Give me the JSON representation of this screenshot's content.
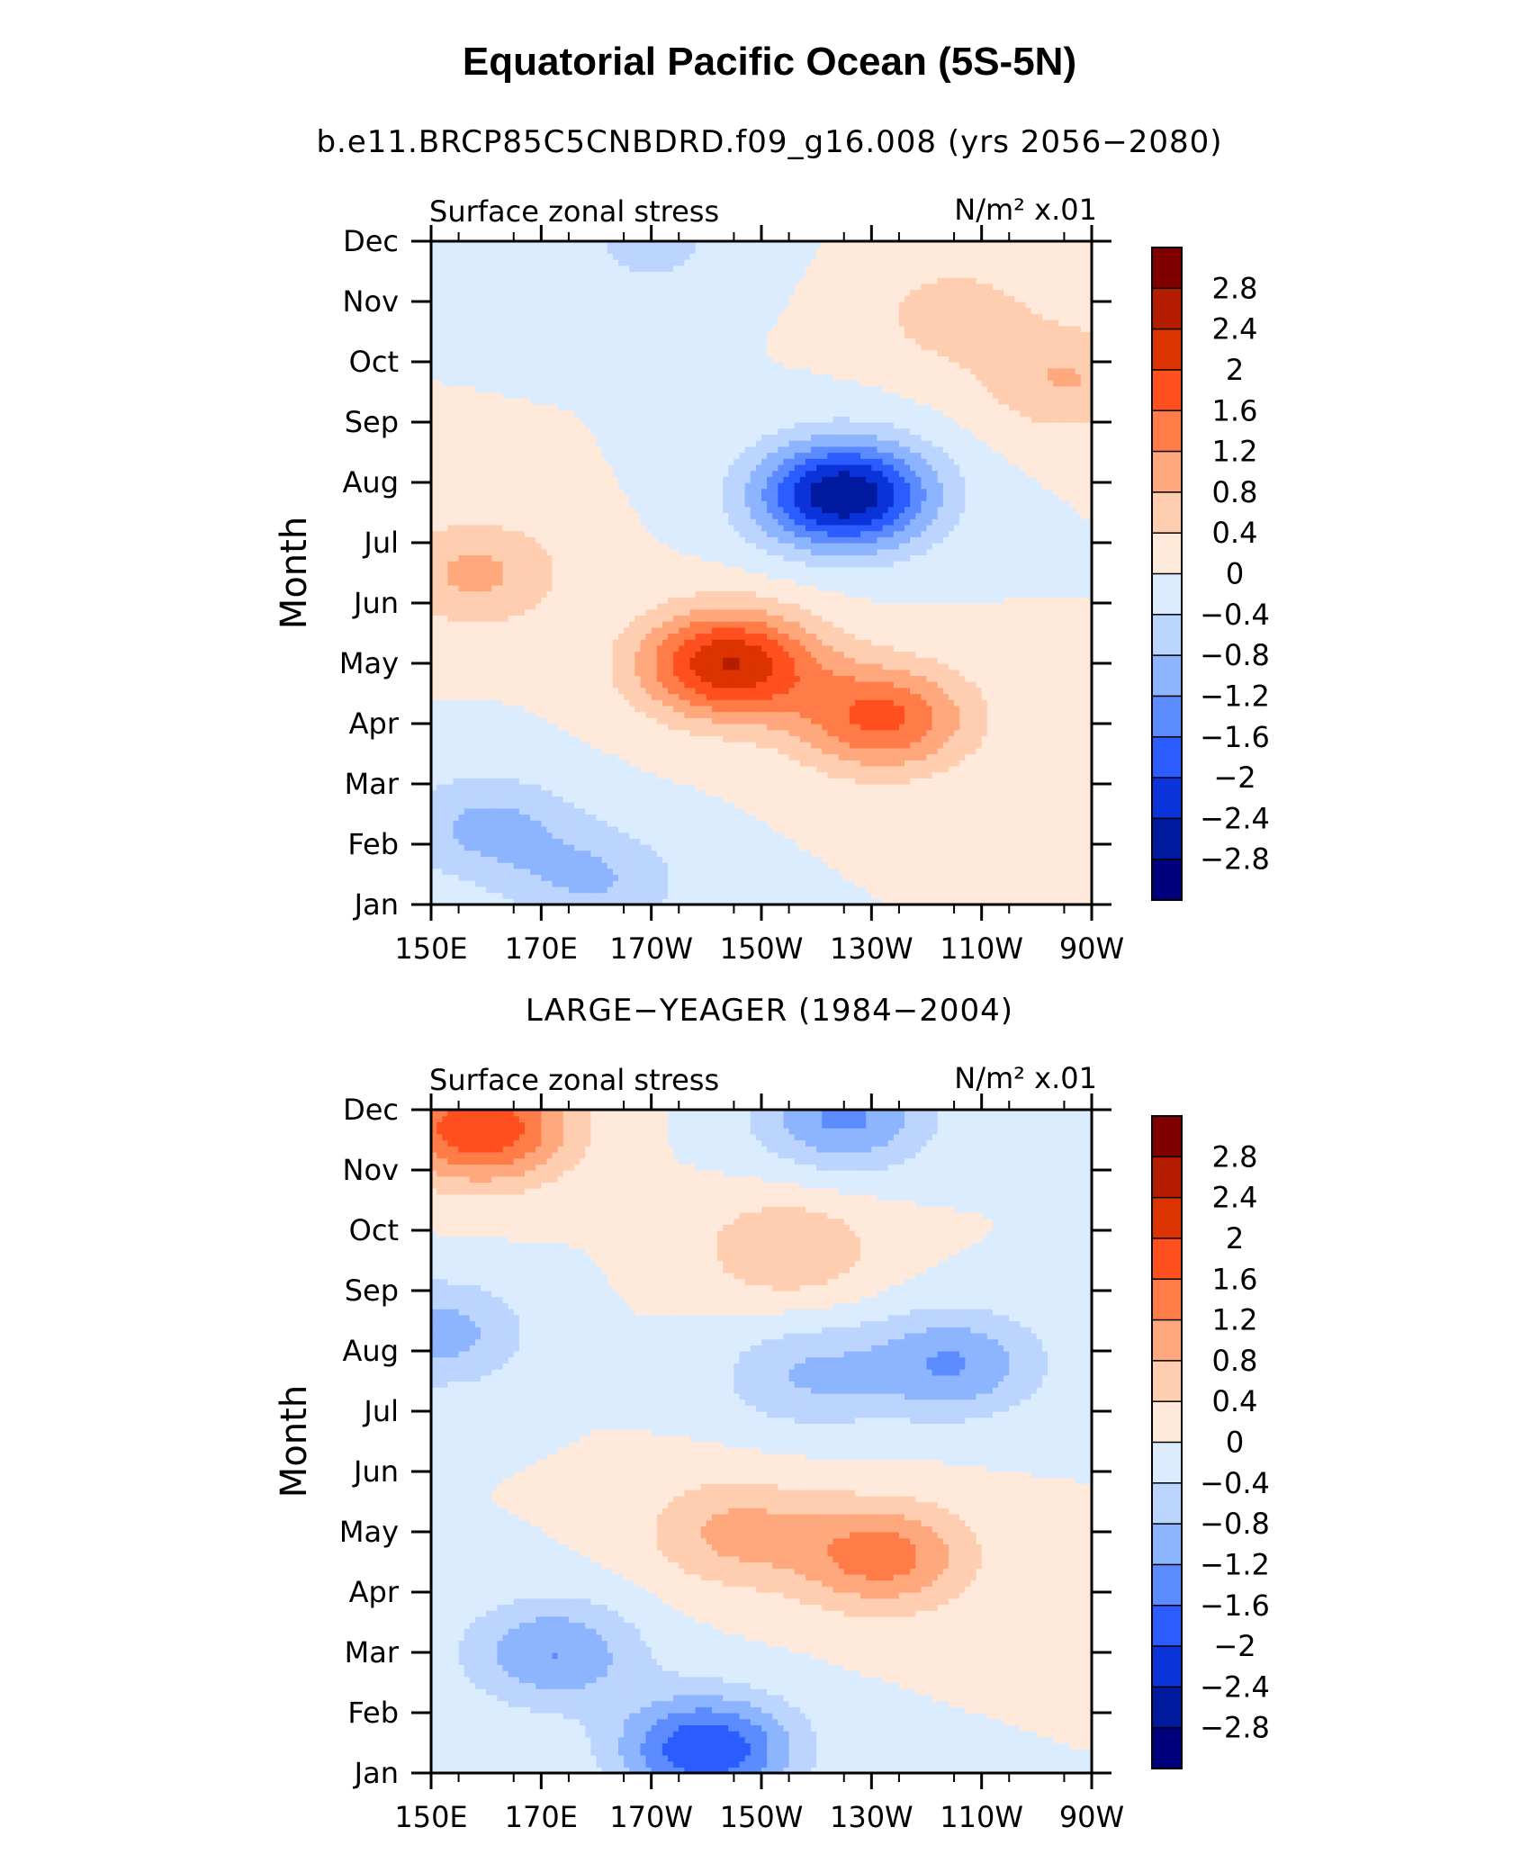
{
  "page": {
    "title": "Equatorial Pacific Ocean (5S-5N)"
  },
  "colorbar": {
    "labels": [
      "2.8",
      "2.4",
      "2",
      "1.6",
      "1.2",
      "0.8",
      "0.4",
      "0",
      "−0.4",
      "−0.8",
      "−1.2",
      "−1.6",
      "−2",
      "−2.4",
      "−2.8"
    ],
    "colors": [
      "#800000",
      "#b51c00",
      "#dc3300",
      "#ff4f1f",
      "#ff7c48",
      "#ffa87d",
      "#ffcdb0",
      "#ffe9da",
      "#dcecff",
      "#bcd5ff",
      "#8db4ff",
      "#5b8bff",
      "#2b5cff",
      "#0a33d9",
      "#001a9f",
      "#00007d"
    ]
  },
  "chart_data": [
    {
      "type": "heatmap",
      "title": "b.e11.BRCP85C5CNBDRD.f09_g16.008 (yrs 2056−2080)",
      "left_label": "Surface zonal stress",
      "right_label": "N/m² x.01",
      "xlabel": "",
      "ylabel": "Month",
      "x_ticks": [
        "150E",
        "170E",
        "170W",
        "150W",
        "130W",
        "110W",
        "90W"
      ],
      "y_ticks": [
        "Jan",
        "Feb",
        "Mar",
        "Apr",
        "May",
        "Jun",
        "Jul",
        "Aug",
        "Sep",
        "Oct",
        "Nov",
        "Dec"
      ],
      "xlim": [
        150,
        270
      ],
      "levels": [
        -2.8,
        -2.4,
        -2,
        -1.6,
        -1.2,
        -0.8,
        -0.4,
        0,
        0.4,
        0.8,
        1.2,
        1.6,
        2,
        2.4,
        2.8
      ],
      "features": [
        {
          "label": "negative winter core",
          "lon": 160,
          "month": 1.3,
          "peak": -0.9
        },
        {
          "label": "negative winter east",
          "lon": 180,
          "month": 0.4,
          "peak": -0.8
        },
        {
          "label": "negative Dec band",
          "lon": 190,
          "month": 10.9,
          "peak": -0.5
        },
        {
          "label": "positive spring maximum",
          "lon": 204,
          "month": 4.0,
          "peak": 2.4
        },
        {
          "label": "positive spring eastern",
          "lon": 232,
          "month": 3.1,
          "peak": 1.7
        },
        {
          "label": "positive western June",
          "lon": 158,
          "month": 5.5,
          "peak": 0.9
        },
        {
          "label": "negative summer minimum",
          "lon": 225,
          "month": 6.8,
          "peak": -2.8
        },
        {
          "label": "positive autumn east",
          "lon": 245,
          "month": 9.8,
          "peak": 0.6
        },
        {
          "label": "positive Sep far east",
          "lon": 266,
          "month": 8.7,
          "peak": 0.8
        }
      ]
    },
    {
      "type": "heatmap",
      "title": "LARGE−YEAGER (1984−2004)",
      "left_label": "Surface zonal stress",
      "right_label": "N/m² x.01",
      "xlabel": "",
      "ylabel": "Month",
      "x_ticks": [
        "150E",
        "170E",
        "170W",
        "150W",
        "130W",
        "110W",
        "90W"
      ],
      "y_ticks": [
        "Jan",
        "Feb",
        "Mar",
        "Apr",
        "May",
        "Jun",
        "Jul",
        "Aug",
        "Sep",
        "Oct",
        "Nov",
        "Dec"
      ],
      "xlim": [
        150,
        270
      ],
      "levels": [
        -2.8,
        -2.4,
        -2,
        -1.6,
        -1.2,
        -0.8,
        -0.4,
        0,
        0.4,
        0.8,
        1.2,
        1.6,
        2,
        2.4,
        2.8
      ],
      "features": [
        {
          "label": "positive Dec west",
          "lon": 159,
          "month": 10.7,
          "peak": 2.0
        },
        {
          "label": "negative Jan core",
          "lon": 200,
          "month": 0.4,
          "peak": -2.0
        },
        {
          "label": "negative Feb west",
          "lon": 172,
          "month": 2.0,
          "peak": -1.2
        },
        {
          "label": "positive spring central",
          "lon": 232,
          "month": 3.6,
          "peak": 1.4
        },
        {
          "label": "positive spring west",
          "lon": 205,
          "month": 4.0,
          "peak": 0.9
        },
        {
          "label": "positive Sep central",
          "lon": 215,
          "month": 8.7,
          "peak": 0.8
        },
        {
          "label": "negative July east",
          "lon": 245,
          "month": 6.8,
          "peak": -1.2
        },
        {
          "label": "negative July central",
          "lon": 218,
          "month": 6.6,
          "peak": -0.8
        },
        {
          "label": "negative Dec central",
          "lon": 225,
          "month": 10.9,
          "peak": -1.3
        },
        {
          "label": "negative Aug far west",
          "lon": 151,
          "month": 7.3,
          "peak": -1.0
        }
      ]
    }
  ]
}
